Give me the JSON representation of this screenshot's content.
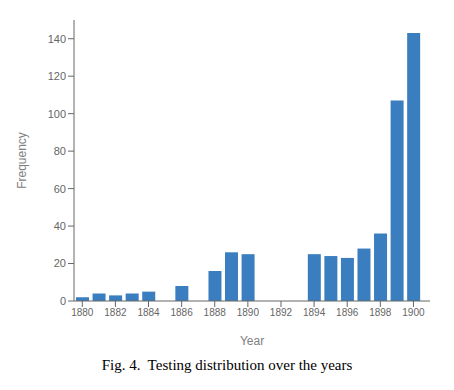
{
  "chart_data": {
    "type": "bar",
    "x": [
      1880,
      1881,
      1882,
      1883,
      1884,
      1885,
      1886,
      1887,
      1888,
      1889,
      1890,
      1891,
      1892,
      1893,
      1894,
      1895,
      1896,
      1897,
      1898,
      1899,
      1900
    ],
    "values": [
      2,
      4,
      3,
      4,
      5,
      0,
      8,
      0,
      16,
      26,
      25,
      0,
      0,
      0,
      25,
      24,
      23,
      28,
      36,
      107,
      143
    ],
    "color": "#3a7ebf",
    "xlabel": "Year",
    "ylabel": "Frequency",
    "xlim": [
      1879.5,
      1901.0
    ],
    "ylim": [
      0,
      150
    ],
    "xticks": [
      1880,
      1882,
      1884,
      1886,
      1888,
      1890,
      1892,
      1894,
      1896,
      1898,
      1900
    ],
    "yticks": [
      0,
      20,
      40,
      60,
      80,
      100,
      120,
      140
    ],
    "grid": false,
    "caption": "Fig. 4.  Testing distribution over the years"
  }
}
